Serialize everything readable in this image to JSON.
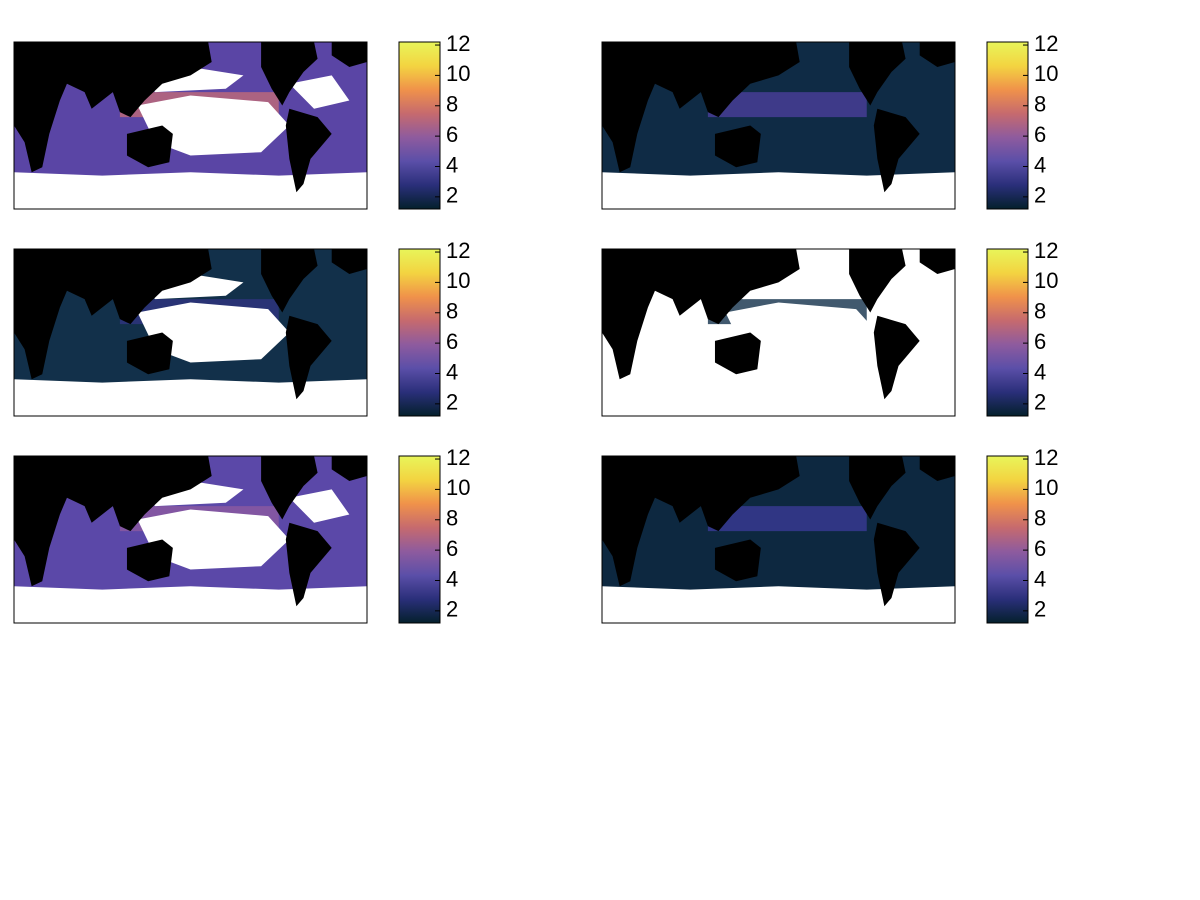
{
  "panels": [
    {
      "colorbar": {
        "clim": [
          1.2,
          12.2
        ],
        "ticks": [
          2,
          4,
          6,
          8,
          10,
          12
        ]
      }
    },
    {
      "colorbar": {
        "clim": [
          1.2,
          12.2
        ],
        "ticks": [
          2,
          4,
          6,
          8,
          10,
          12
        ]
      }
    },
    {
      "colorbar": {
        "clim": [
          1.2,
          12.2
        ],
        "ticks": [
          2,
          4,
          6,
          8,
          10,
          12
        ]
      }
    },
    {
      "colorbar": {
        "clim": [
          1.2,
          12.2
        ],
        "ticks": [
          2,
          4,
          6,
          8,
          10,
          12
        ]
      }
    },
    {
      "colorbar": {
        "clim": [
          1.2,
          12.2
        ],
        "ticks": [
          2,
          4,
          6,
          8,
          10,
          12
        ]
      }
    },
    {
      "colorbar": {
        "clim": [
          1.2,
          12.2
        ],
        "ticks": [
          2,
          4,
          6,
          8,
          10,
          12
        ]
      }
    }
  ],
  "colormap": [
    "#04202c",
    "#2a2f7a",
    "#5b4fa8",
    "#8e5b9e",
    "#c66a6e",
    "#f0924a",
    "#f3d441",
    "#e8f55a"
  ]
}
